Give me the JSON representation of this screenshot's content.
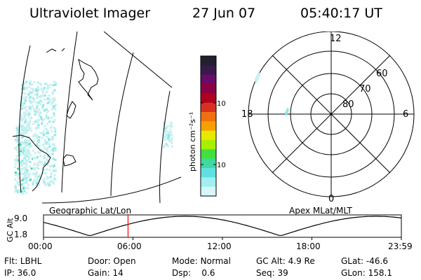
{
  "header": {
    "title": "Ultraviolet Imager",
    "date": "27 Jun 07",
    "time": "05:40:17 UT"
  },
  "colorbar": {
    "label": "photon cm⁻²s⁻¹",
    "ticks": [
      "100",
      "10"
    ],
    "colors": [
      "#202030",
      "#3a1a4a",
      "#6a0a6a",
      "#8a0040",
      "#b00020",
      "#d83020",
      "#f07010",
      "#f8a000",
      "#e8e800",
      "#a8f000",
      "#40e040",
      "#40d8a0",
      "#60e0e0",
      "#a0f0f0",
      "#d8f8f8"
    ]
  },
  "map": {
    "label": "Geographic Lat/Lon",
    "aurora_colors": [
      "#c8f0f0",
      "#90e8e8",
      "#40d8a0"
    ]
  },
  "polar": {
    "label": "Apex MLat/MLT",
    "mlt_labels": [
      "12",
      "18",
      "6",
      "0"
    ],
    "lat_labels": [
      "60",
      "70",
      "80"
    ]
  },
  "altitude_plot": {
    "ylabel": "GC Alt",
    "yticks": [
      "9.0",
      "1.8"
    ],
    "xticks": [
      "00:00",
      "06:00",
      "12:00",
      "18:00",
      "23:59"
    ],
    "marker_hour": 5.67,
    "marker_color": "#ff0000"
  },
  "info": {
    "row1": [
      {
        "label": "Flt:",
        "value": "LBHL"
      },
      {
        "label": "Door:",
        "value": "Open"
      },
      {
        "label": "Mode:",
        "value": "Normal"
      },
      {
        "label": "GC Alt:",
        "value": "4.9 Re"
      },
      {
        "label": "GLat:",
        "value": "-46.6"
      }
    ],
    "row2": [
      {
        "label": "IP:",
        "value": "36.0"
      },
      {
        "label": "Gain:",
        "value": "14"
      },
      {
        "label": "Dsp:",
        "value": "0.6"
      },
      {
        "label": "Seq:",
        "value": "39"
      },
      {
        "label": "GLon:",
        "value": "158.1"
      }
    ]
  }
}
